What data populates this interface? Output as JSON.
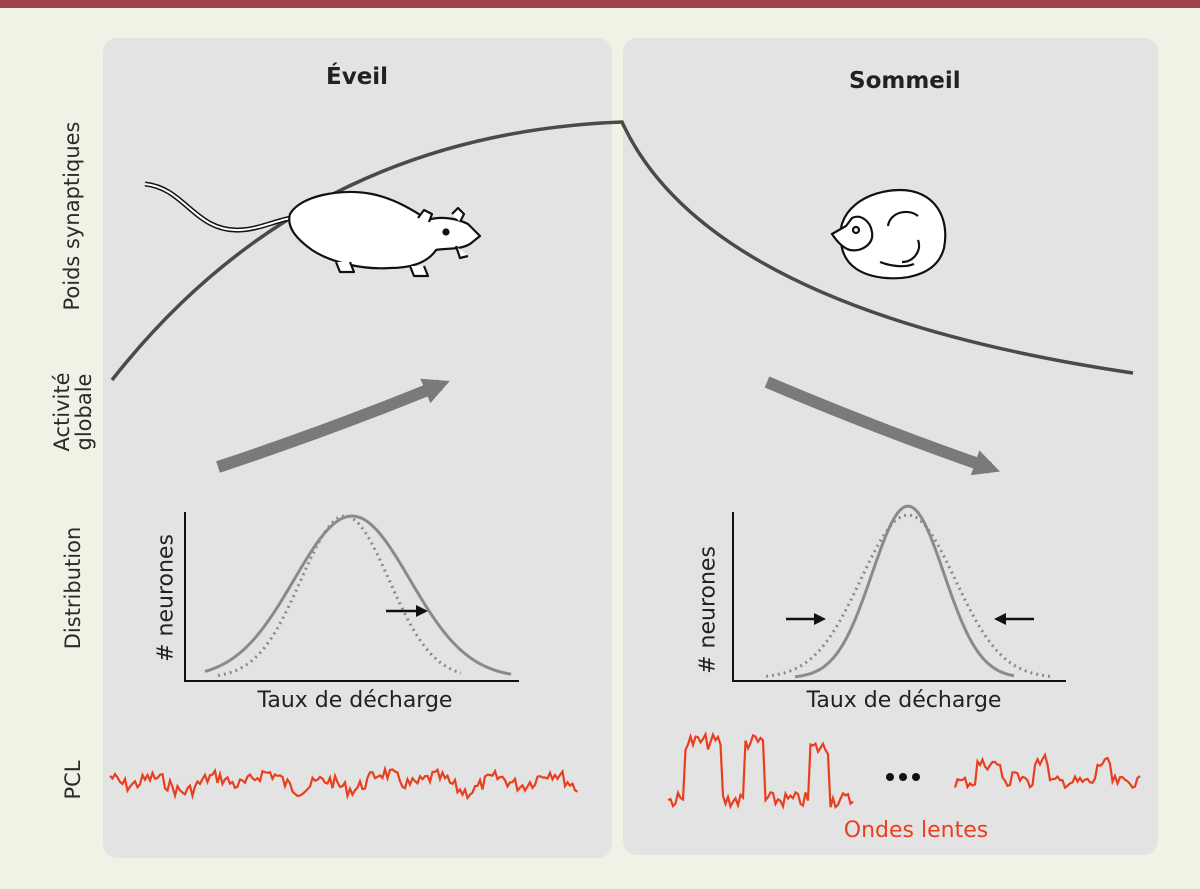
{
  "panels": {
    "wake_title": "Éveil",
    "sleep_title": "Sommeil"
  },
  "row_labels": {
    "synaptic_weight": "Poids synaptiques",
    "global_activity": [
      "Activité",
      "globale"
    ],
    "distribution": "Distribution",
    "lfp": "PCL"
  },
  "plots": {
    "y_label": "# neurones",
    "x_label": "Taux de décharge"
  },
  "slow_waves_label": "Ondes lentes",
  "colors": {
    "frame": "#eef3e6",
    "top_bar": "#9e4550",
    "panel": "#e3e3e3",
    "curve": "#4a4a4a",
    "arrow": "#7a7a7a",
    "distribution": "#8a8a8a",
    "lfp": "#e8401f"
  },
  "icons": [
    "rat-awake-icon",
    "rat-sleeping-icon"
  ]
}
